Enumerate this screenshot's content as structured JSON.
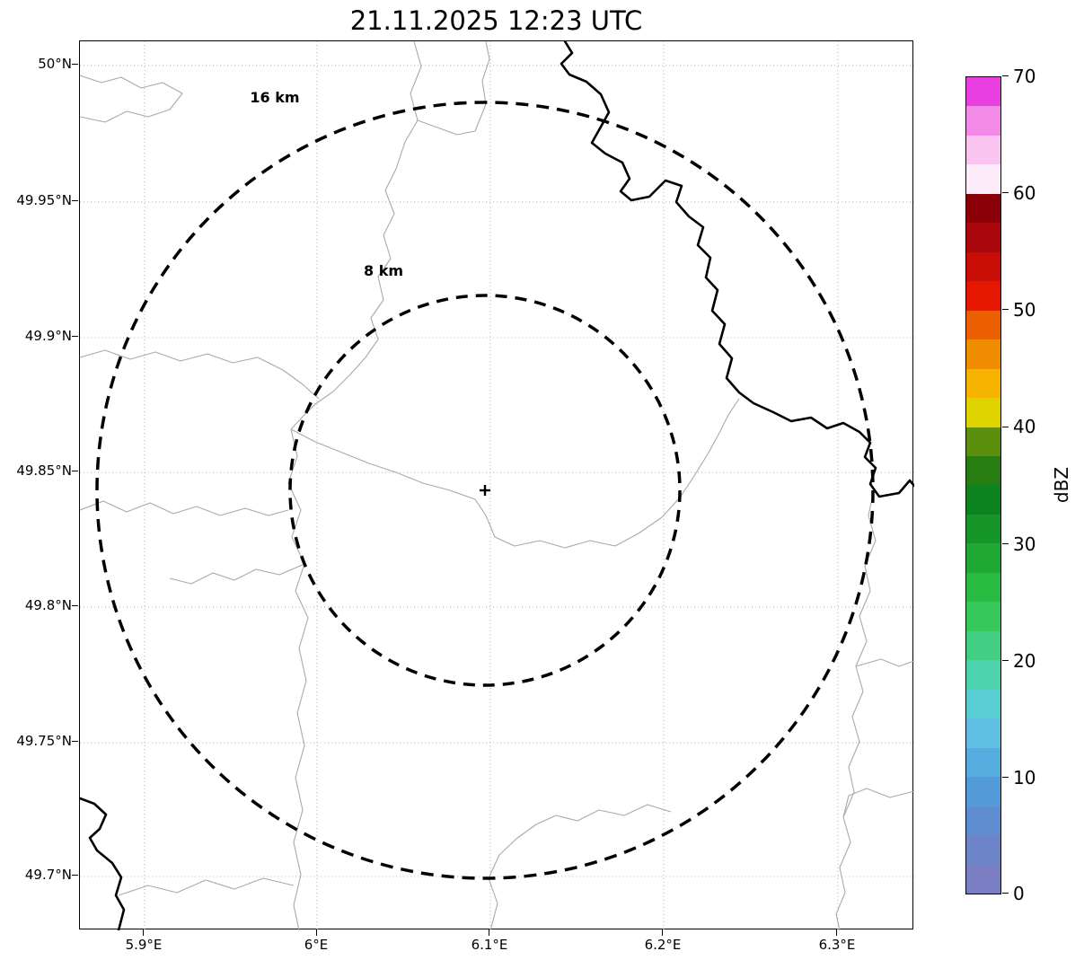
{
  "title": "21.11.2025 12:23 UTC",
  "plot": {
    "x_axis": {
      "ticks": [
        "5.9°E",
        "6°E",
        "6.1°E",
        "6.2°E",
        "6.3°E"
      ]
    },
    "y_axis": {
      "ticks": [
        "50°N",
        "49.95°N",
        "49.9°N",
        "49.85°N",
        "49.8°N",
        "49.75°N",
        "49.7°N"
      ]
    },
    "rings": {
      "outer_label": "16 km",
      "inner_label": "8 km"
    },
    "site_marker": "+"
  },
  "colorbar": {
    "label": "dBZ",
    "ticks": [
      "70",
      "60",
      "50",
      "40",
      "30",
      "20",
      "10",
      "0"
    ],
    "segments_bottom_to_top": [
      "#7a7ec2",
      "#6d84c9",
      "#5e8ed1",
      "#549bd9",
      "#57acdf",
      "#60c0e4",
      "#58cdd2",
      "#4dd2ae",
      "#43cf83",
      "#36c85a",
      "#2abb41",
      "#20a835",
      "#169529",
      "#0d831f",
      "#277c12",
      "#5d8f0e",
      "#e0d400",
      "#f6b400",
      "#f08c00",
      "#ec5f00",
      "#e61700",
      "#c90e08",
      "#aa080c",
      "#8b0008",
      "#fcecf9",
      "#f9c4ef",
      "#f38ae8",
      "#ea3fe0"
    ]
  },
  "colors": {
    "ring": "#000000",
    "river": "#000000",
    "boundary": "#a9a9a9",
    "grid": "#b0b0b0",
    "background": "#ffffff"
  },
  "chart_data": {
    "type": "map",
    "title": "21.11.2025 12:23 UTC",
    "x_ticks": [
      "5.9°E",
      "6°E",
      "6.1°E",
      "6.2°E",
      "6.3°E"
    ],
    "y_ticks": [
      "50°N",
      "49.95°N",
      "49.9°N",
      "49.85°N",
      "49.8°N",
      "49.75°N",
      "49.7°N"
    ],
    "range_rings_km": [
      8,
      16
    ],
    "radar_site_approx": {
      "lon_e": 6.1,
      "lat_n": 49.84
    },
    "colorbar": {
      "label": "dBZ",
      "min": 0,
      "max": 70,
      "tick_values": [
        0,
        10,
        20,
        30,
        40,
        50,
        60,
        70
      ]
    },
    "echoes": []
  }
}
